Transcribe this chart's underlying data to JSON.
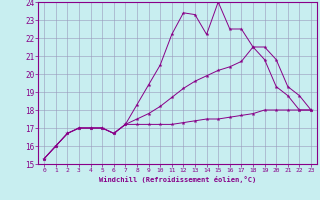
{
  "xlabel": "Windchill (Refroidissement éolien,°C)",
  "background_color": "#c8eef0",
  "grid_color": "#9999bb",
  "line_color": "#880088",
  "x_ticks": [
    0,
    1,
    2,
    3,
    4,
    5,
    6,
    7,
    8,
    9,
    10,
    11,
    12,
    13,
    14,
    15,
    16,
    17,
    18,
    19,
    20,
    21,
    22,
    23
  ],
  "ylim": [
    15,
    24
  ],
  "xlim": [
    -0.5,
    23.5
  ],
  "yticks": [
    15,
    16,
    17,
    18,
    19,
    20,
    21,
    22,
    23,
    24
  ],
  "line1": [
    15.3,
    16.0,
    16.7,
    17.0,
    17.0,
    17.0,
    16.7,
    17.2,
    18.3,
    19.4,
    20.5,
    22.2,
    23.4,
    23.3,
    22.2,
    24.0,
    22.5,
    22.5,
    21.5,
    20.8,
    19.3,
    18.8,
    18.0,
    18.0
  ],
  "line2": [
    15.3,
    16.0,
    16.7,
    17.0,
    17.0,
    17.0,
    16.7,
    17.2,
    17.2,
    17.2,
    17.2,
    17.2,
    17.3,
    17.4,
    17.5,
    17.5,
    17.6,
    17.7,
    17.8,
    18.0,
    18.0,
    18.0,
    18.0,
    18.0
  ],
  "line3": [
    15.3,
    16.0,
    16.7,
    17.0,
    17.0,
    17.0,
    16.7,
    17.2,
    17.5,
    17.8,
    18.2,
    18.7,
    19.2,
    19.6,
    19.9,
    20.2,
    20.4,
    20.7,
    21.5,
    21.5,
    20.8,
    19.3,
    18.8,
    18.0
  ]
}
